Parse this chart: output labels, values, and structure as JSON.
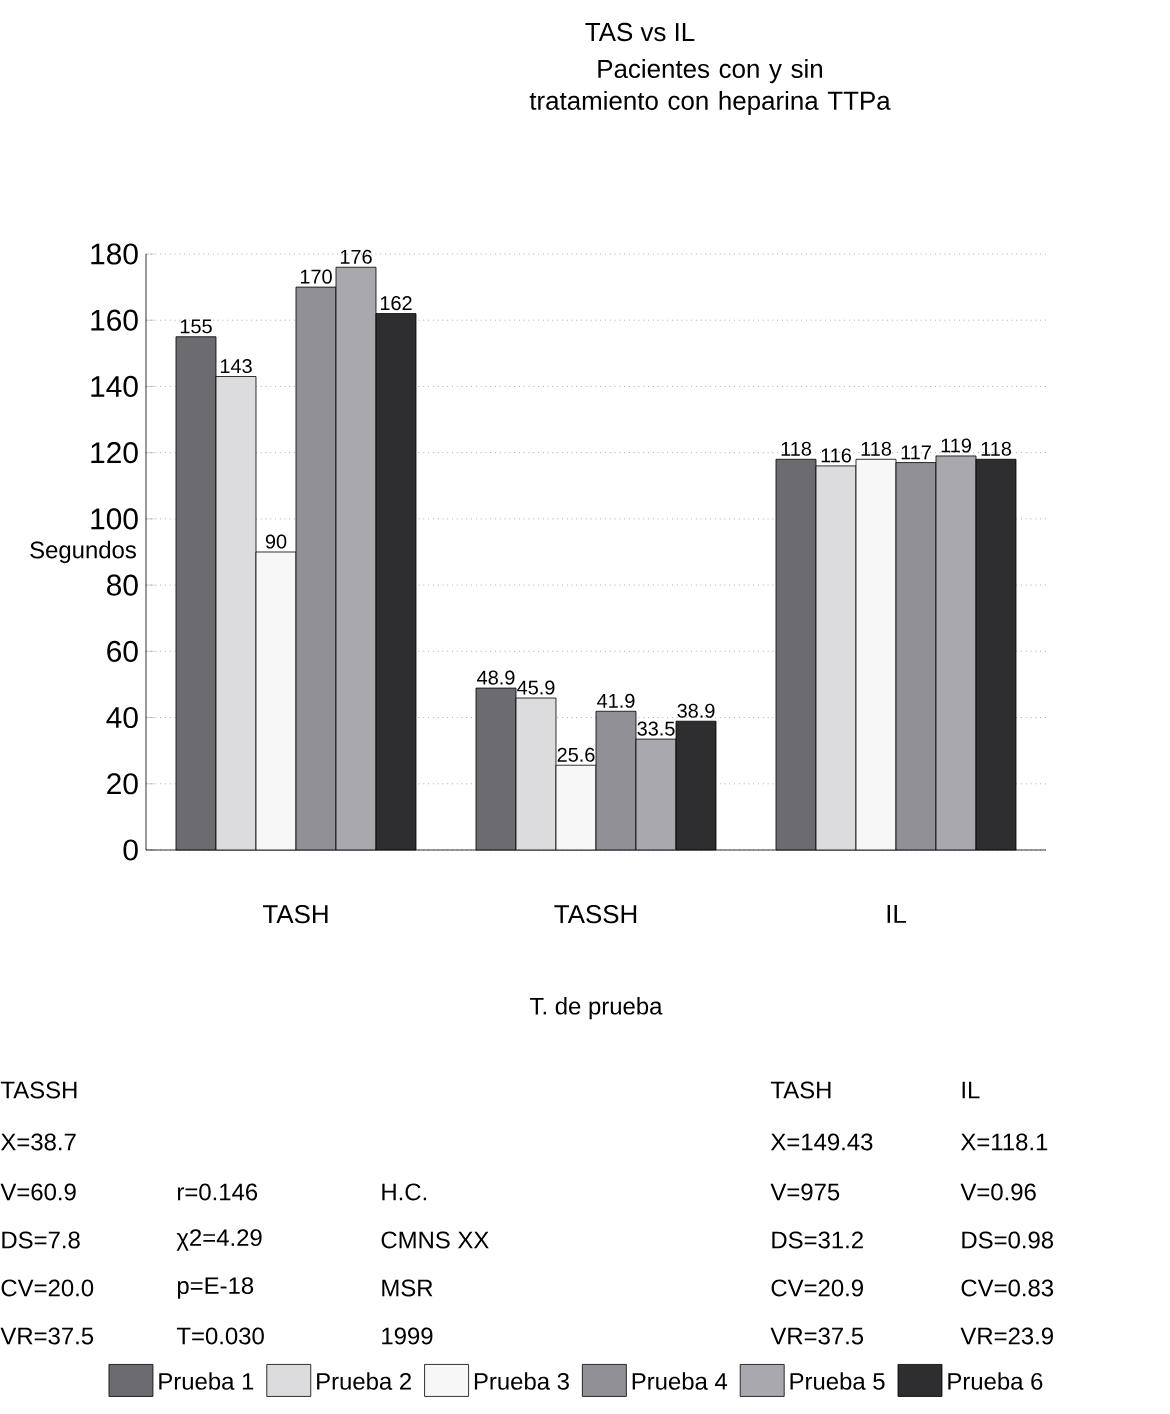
{
  "chart_data": {
    "type": "bar",
    "title": "TAS vs IL",
    "subtitle": "Pacientes con y sin tratamiento con heparina TTPa",
    "xlabel": "T. de prueba",
    "ylabel": "Segundos",
    "categories": [
      "TASH",
      "TASSH",
      "IL"
    ],
    "series": [
      {
        "name": "Prueba 1",
        "color": "#6b6b70",
        "values": [
          155,
          48.9,
          118
        ]
      },
      {
        "name": "Prueba 2",
        "color": "#dcdcde",
        "values": [
          143,
          45.9,
          116
        ]
      },
      {
        "name": "Prueba 3",
        "color": "#f7f7f7",
        "values": [
          90,
          25.6,
          118
        ]
      },
      {
        "name": "Prueba 4",
        "color": "#909096",
        "values": [
          170,
          41.9,
          117
        ]
      },
      {
        "name": "Prueba 5",
        "color": "#a8a8ae",
        "values": [
          176,
          33.5,
          119
        ]
      },
      {
        "name": "Prueba 6",
        "color": "#2e2e30",
        "values": [
          162,
          38.9,
          118
        ]
      }
    ],
    "ylim": [
      0,
      180
    ],
    "yticks": [
      0,
      20,
      40,
      60,
      80,
      100,
      120,
      140,
      160,
      180
    ],
    "grid": "y",
    "legend": "bottom",
    "data_labels": true,
    "annotations": [
      "TASSH",
      "X=38.7",
      "V=60.9",
      "DS=7.8",
      "CV=20.0",
      "VR=37.5",
      "r=0.146",
      "χ2=4.29",
      "p=E-18",
      "T=0.030",
      "H.C.",
      "CMNS XX",
      "MSR",
      "1999",
      "TASH",
      "X=149.43",
      "V=975",
      "DS=31.2",
      "CV=20.9",
      "VR=37.5",
      "IL",
      "X=118.1",
      "V=0.96",
      "DS=0.98",
      "CV=0.83",
      "VR=23.9"
    ]
  }
}
